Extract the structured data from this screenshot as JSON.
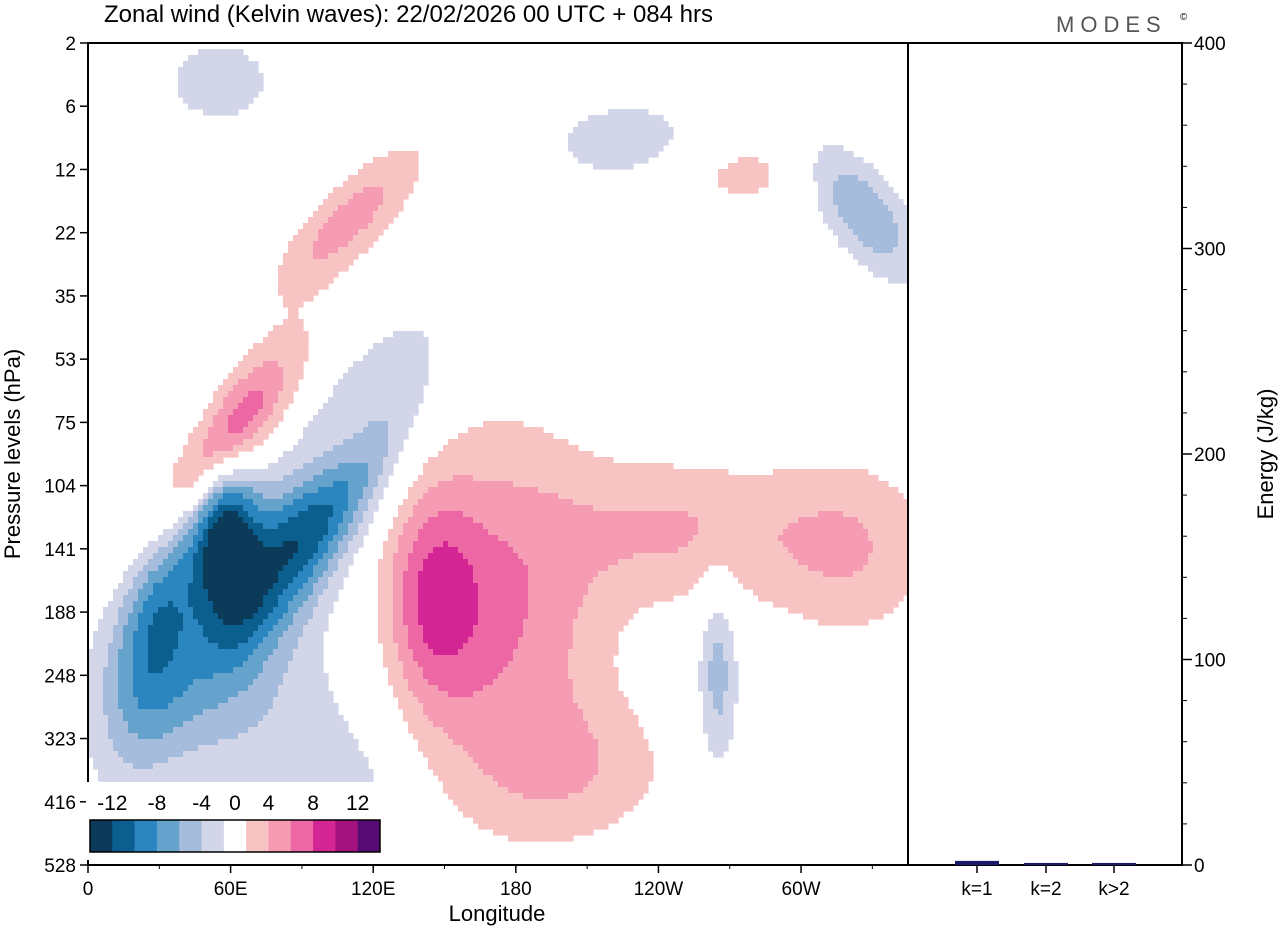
{
  "title": "Zonal wind (Kelvin waves):  22/02/2026  00 UTC  + 084 hrs",
  "brand": "MODES",
  "brand_mark": "©",
  "colors": {
    "neg": [
      "#0c3b59",
      "#0b5f8f",
      "#2b86c0",
      "#66a3cc",
      "#a5bcdd",
      "#d3d6e8"
    ],
    "pos": [
      "#f8c3c3",
      "#f59cb4",
      "#ed67a4",
      "#d42594",
      "#a4127f",
      "#570a72"
    ],
    "bar": "#1a1a6e",
    "frame": "#000000"
  },
  "chart_data": [
    {
      "type": "heatmap",
      "title": "Zonal wind (Kelvin waves):  22/02/2026  00 UTC  + 084 hrs",
      "xlabel": "Longitude",
      "ylabel": "Pressure levels (hPa)",
      "x_ticks": [
        "0",
        "60E",
        "120E",
        "180",
        "120W",
        "60W"
      ],
      "x_tick_values": [
        0,
        60,
        120,
        180,
        240,
        300
      ],
      "xlim": [
        0,
        345
      ],
      "y_ticks": [
        "2",
        "6",
        "12",
        "22",
        "35",
        "53",
        "75",
        "104",
        "141",
        "188",
        "248",
        "323",
        "416",
        "528"
      ],
      "colorbar_labels": [
        "-12",
        "-8",
        "-4",
        "0",
        "4",
        "8",
        "12"
      ],
      "colorbar_levels": [
        -14,
        -12,
        -10,
        -8,
        -6,
        -4,
        -2,
        2,
        4,
        6,
        8,
        10,
        12,
        14
      ],
      "features": [
        {
          "name": "strong-easterly-jet",
          "lon": 95,
          "level_index": 7.4,
          "value": -13,
          "lon_spread": 28,
          "lev_spread": 0.9,
          "tilt": -0.045
        },
        {
          "name": "easterly-core-west",
          "lon": 58,
          "level_index": 7.8,
          "value": -12,
          "lon_spread": 10,
          "lev_spread": 0.9,
          "tilt": 0
        },
        {
          "name": "easterly-lower-tail",
          "lon": 30,
          "level_index": 9.0,
          "value": -8,
          "lon_spread": 14,
          "lev_spread": 1.3,
          "tilt": -0.05
        },
        {
          "name": "weak-easterly-base",
          "lon": 55,
          "level_index": 10.3,
          "value": -4,
          "lon_spread": 40,
          "lev_spread": 1.2,
          "tilt": 0
        },
        {
          "name": "westerly-band-upper",
          "lon": 55,
          "level_index": 6.4,
          "value": 9,
          "lon_spread": 22,
          "lev_spread": 0.6,
          "tilt": -0.04
        },
        {
          "name": "westerly-band-mid",
          "lon": 105,
          "level_index": 6.5,
          "value": 6,
          "lon_spread": 16,
          "lev_spread": 0.5,
          "tilt": -0.03
        },
        {
          "name": "westerly-broad-180",
          "lon": 175,
          "level_index": 9.0,
          "value": 6,
          "lon_spread": 30,
          "lev_spread": 2.0,
          "tilt": 0
        },
        {
          "name": "westerly-broad-150",
          "lon": 145,
          "level_index": 8.8,
          "value": 6,
          "lon_spread": 14,
          "lev_spread": 1.2,
          "tilt": 0
        },
        {
          "name": "westerly-120W",
          "lon": 250,
          "level_index": 7.7,
          "value": 4,
          "lon_spread": 35,
          "lev_spread": 0.8,
          "tilt": 0
        },
        {
          "name": "westerly-east",
          "lon": 320,
          "level_index": 8.0,
          "value": 4,
          "lon_spread": 25,
          "lev_spread": 1.0,
          "tilt": 0
        },
        {
          "name": "easterly-60W-lower",
          "lon": 265,
          "level_index": 10.0,
          "value": -5,
          "lon_spread": 6,
          "lev_spread": 1.1,
          "tilt": 0
        },
        {
          "name": "easterly-upper-east",
          "lon": 325,
          "level_index": 2.6,
          "value": -6,
          "lon_spread": 18,
          "lev_spread": 0.6,
          "tilt": 0.03
        },
        {
          "name": "easterly-upper-mid",
          "lon": 230,
          "level_index": 1.6,
          "value": -4,
          "lon_spread": 25,
          "lev_spread": 0.5,
          "tilt": 0
        },
        {
          "name": "westerly-upper-west",
          "lon": 110,
          "level_index": 2.8,
          "value": 5,
          "lon_spread": 22,
          "lev_spread": 0.5,
          "tilt": -0.03
        },
        {
          "name": "westerly-upper-east",
          "lon": 270,
          "level_index": 2.0,
          "value": 3,
          "lon_spread": 30,
          "lev_spread": 0.5,
          "tilt": 0
        },
        {
          "name": "easterly-top",
          "lon": 55,
          "level_index": 0.6,
          "value": -3,
          "lon_spread": 20,
          "lev_spread": 0.6,
          "tilt": 0
        },
        {
          "name": "westerly-low-lower",
          "lon": 205,
          "level_index": 11.5,
          "value": 3,
          "lon_spread": 30,
          "lev_spread": 0.8,
          "tilt": 0
        },
        {
          "name": "easterly-bottom",
          "lon": 105,
          "level_index": 12.0,
          "value": -3,
          "lon_spread": 20,
          "lev_spread": 0.8,
          "tilt": 0
        }
      ]
    },
    {
      "type": "bar",
      "categories": [
        "k=1",
        "k=2",
        "k>2"
      ],
      "values": [
        2,
        1,
        1
      ],
      "ylabel": "Energy (J/kg)",
      "ylim": [
        0,
        400
      ],
      "y_ticks": [
        "0",
        "100",
        "200",
        "300",
        "400"
      ],
      "y_tick_values": [
        0,
        100,
        200,
        300,
        400
      ]
    }
  ]
}
